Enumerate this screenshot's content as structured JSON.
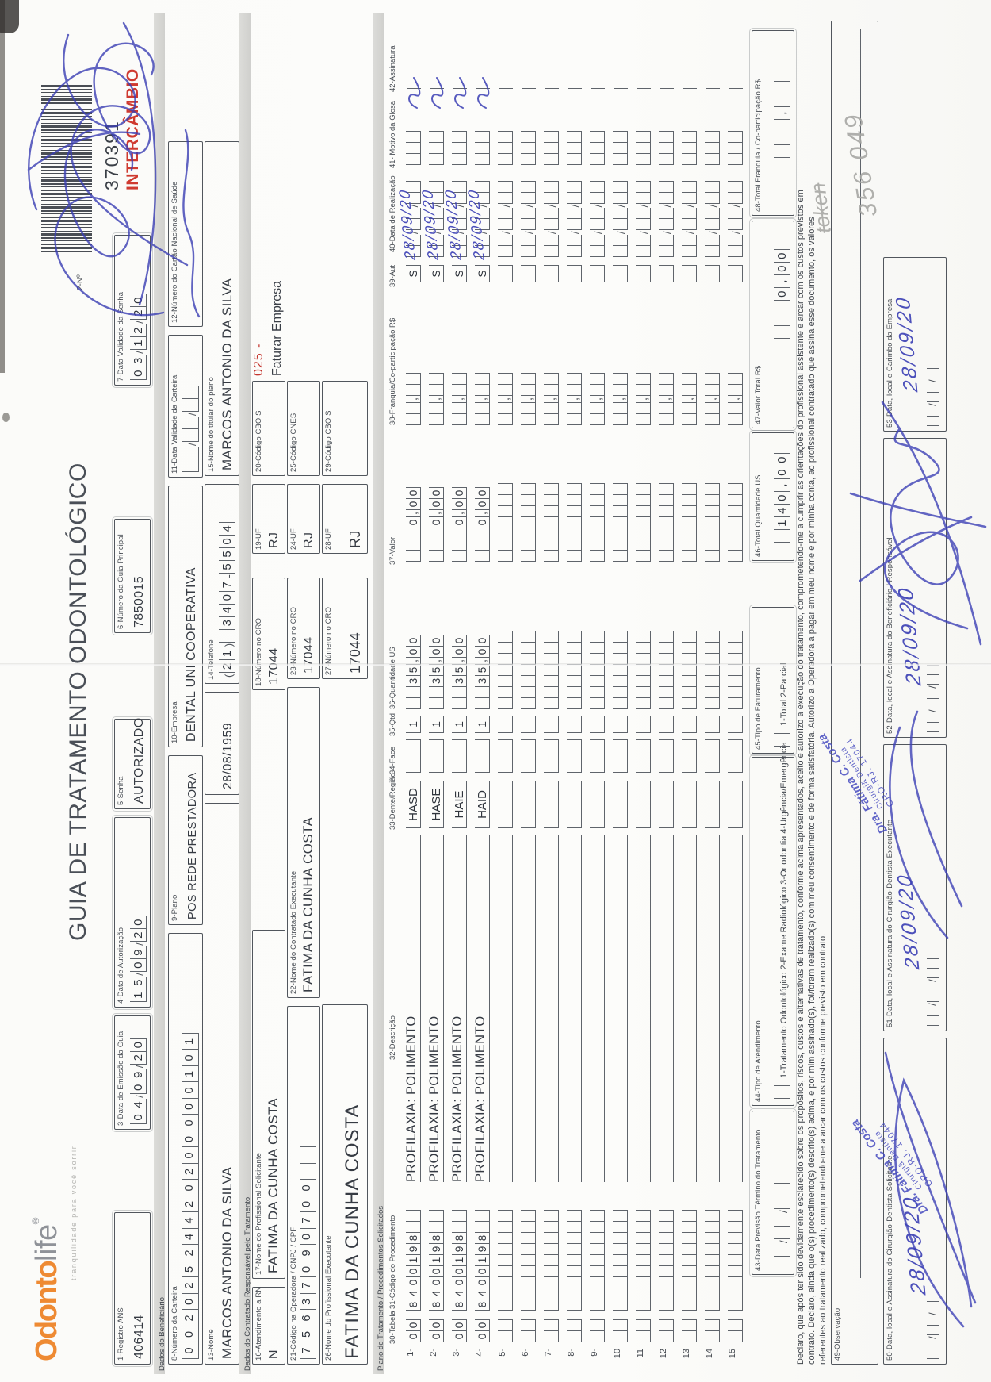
{
  "scan_marks": {
    "barcode_label": "2-Nº",
    "id_number": "370391",
    "id_tag": "INTERCÂMBIO",
    "pencil_note": "token",
    "pencil_number": "356 049",
    "ink_color": "#3e42b6",
    "red_color": "#cf3a30",
    "brand_orange_color": "#ee8a33"
  },
  "logo": {
    "brand_part1": "Odonto",
    "brand_part2": "life",
    "reg": "®",
    "tagline": "tranquilidade para você sorrir"
  },
  "title": "GUIA DE TRATAMENTO ODONTOLÓGICO",
  "header": {
    "f1": {
      "label": "1-Registro ANS",
      "value": "406414"
    },
    "f3": {
      "label": "3-Data de Emissão da Guia",
      "value": "04/09/20"
    },
    "f4": {
      "label": "4-Data de Autorização",
      "value": "15/09/20"
    },
    "f5": {
      "label": "5-Senha",
      "value": "AUTORIZADO"
    },
    "f6": {
      "label": "6-Número da Guia Principal",
      "value": "7850015"
    },
    "f7": {
      "label": "7-Data Validade da Senha",
      "value": "03/12/20"
    }
  },
  "beneficiario": {
    "section": "Dados do Beneficiário",
    "f8": {
      "label": "8-Número da Carteira",
      "value": "00202524420200000101"
    },
    "f9": {
      "label": "9-Plano",
      "value": "POS REDE PRESTADORA"
    },
    "f10": {
      "label": "10-Empresa",
      "value": "DENTAL UNI  COOPERATIVA"
    },
    "f11": {
      "label": "11-Data Validade da Carteira",
      "value": "  /  /  "
    },
    "f12": {
      "label": "12-Número do Cartão Nacional de Saúde",
      "value": ""
    },
    "f13": {
      "label": "13-Nome",
      "value": "MARCOS ANTONIO DA SILVA"
    },
    "birth_date": "28/08/1959",
    "f14": {
      "label": "14-Telefone",
      "value": "(21) 3407-5504"
    },
    "f15": {
      "label": "15-Nome do titular do plano",
      "value": "MARCOS ANTONIO DA SILVA"
    }
  },
  "contratado": {
    "section": "Dados do Contratado Responsável pelo Tratamento",
    "f16": {
      "label": "16-Atendimento a RN",
      "value": "N"
    },
    "f17": {
      "label": "17-Nome do Profissional Solicitante",
      "value": "FATIMA DA CUNHA COSTA"
    },
    "f18": {
      "label": "18-Número no CRO",
      "value": "17044"
    },
    "f19": {
      "label": "19-UF",
      "value": "RJ"
    },
    "f20": {
      "label": "20-Código CBO S",
      "value": ""
    },
    "note_number": "025 -",
    "note_text": "Faturar Empresa",
    "f21": {
      "label": "21-Código na Operadora / CNPJ / CPF",
      "value": "75637090700  "
    },
    "f22": {
      "label": "22-Nome do Contratado Executante",
      "value": "FATIMA DA CUNHA COSTA"
    },
    "f23": {
      "label": "23-Número no CRO",
      "value": "17044"
    },
    "f24": {
      "label": "24-UF",
      "value": "RJ"
    },
    "f25": {
      "label": "25-Código CNES",
      "value": ""
    },
    "f26": {
      "label": "26-Nome do Profissional Executante",
      "value": "FATIMA DA CUNHA COSTA"
    },
    "f27": {
      "label": "27-Número no CRO",
      "value": "17044"
    },
    "f28": {
      "label": "28-UF",
      "value": "RJ"
    },
    "f29": {
      "label": "29-Código CBO S",
      "value": ""
    }
  },
  "treatment_table": {
    "section": "Plano de Tratamento / Procedimentos Solicitados",
    "headers": [
      "30-Tabela",
      "31-Código do Procedimento",
      "32-Descrição",
      "33-Dente/Região",
      "34-Face",
      "35-Qtd",
      "36-Quantidade US",
      "37-Valor",
      "38-Franquia/Co-participação R$",
      "39-Aut",
      "40-Data de Realização",
      "41- Motivo da Glosa",
      "42-Assinatura"
    ],
    "rows": [
      {
        "n": "1-",
        "tabela": "00",
        "codigo": "8400198  ",
        "descricao": "PROFILAXIA: POLIMENTO",
        "dente": "HASD",
        "face": "",
        "qtd": "1",
        "qtd_us": "  35,00",
        "valor": "   0,00",
        "franquia": "  ,  ",
        "aut": "S",
        "data": "  /  /  ",
        "data_ink": "28/09/20",
        "motivo": "   "
      },
      {
        "n": "2-",
        "tabela": "00",
        "codigo": "8400198  ",
        "descricao": "PROFILAXIA: POLIMENTO",
        "dente": "HASE",
        "face": "",
        "qtd": "1",
        "qtd_us": "  35,00",
        "valor": "   0,00",
        "franquia": "  ,  ",
        "aut": "S",
        "data": "  /  /  ",
        "data_ink": "28/09/20",
        "motivo": "   "
      },
      {
        "n": "3-",
        "tabela": "00",
        "codigo": "8400198  ",
        "descricao": "PROFILAXIA: POLIMENTO",
        "dente": "HAIE",
        "face": "",
        "qtd": "1",
        "qtd_us": "  35,00",
        "valor": "   0,00",
        "franquia": "  ,  ",
        "aut": "S",
        "data": "  /  /  ",
        "data_ink": "28/09/20",
        "motivo": "   "
      },
      {
        "n": "4-",
        "tabela": "00",
        "codigo": "8400198  ",
        "descricao": "PROFILAXIA: POLIMENTO",
        "dente": "HAID",
        "face": "",
        "qtd": "1",
        "qtd_us": "  35,00",
        "valor": "   0,00",
        "franquia": "  ,  ",
        "aut": "S",
        "data": "  /  /  ",
        "data_ink": "28/09/20",
        "motivo": "   "
      },
      {
        "n": "5-"
      },
      {
        "n": "6-"
      },
      {
        "n": "7-"
      },
      {
        "n": "8-"
      },
      {
        "n": "9-"
      },
      {
        "n": "10"
      },
      {
        "n": "11"
      },
      {
        "n": "12"
      },
      {
        "n": "13"
      },
      {
        "n": "14"
      },
      {
        "n": "15"
      }
    ]
  },
  "footer": {
    "f43": {
      "label": "43-Data Previsão Término do Tratamento",
      "value": "  /  /  "
    },
    "f44": {
      "label": "44-Tipo de Atendimento",
      "checkbox": " ",
      "options": "1-Tratamento Odontológico  2-Exame Radiológico  3-Ortodontia  4-Urgência/Emergência"
    },
    "f45": {
      "label": "45-Tipo de Faturamento",
      "checkbox": " ",
      "options": "1-Total  2-Parcial"
    },
    "f46": {
      "label": "46-Total Quantidade US",
      "value": "  140,00"
    },
    "f47": {
      "label": "47-Valor Total R$",
      "value": "    0,00"
    },
    "f48": {
      "label": "48-Total Franquia / Co-participação R$",
      "value": "   ,  "
    },
    "declaration": [
      "Declaro, que após ter sido devidamente esclarecido sobre os propósitos, riscos, custos e alternativas de tratamento, conforme acima apresentados, aceito e autorizo a execução do tratamento, comprometendo-me a cumprir as orientações do profissional assistente e arcar com os custos previstos em",
      "contrato. Declaro, ainda que o(s) procedimento(s) descrito(s) acima, e por mim assinado(s), foi/foram realizado(s) com meu consentimento e de forma satisfatória. Autorizo a Operadora a pagar em meu nome e por minha conta, ao profissional contratado que assina esse documento, os valores",
      "referentes ao tratamento realizado, comprometendo-me a arcar com os custos conforme previsto em contrato."
    ],
    "f49": {
      "label": "49-Observação",
      "value": ""
    },
    "f50": {
      "label": "50-Data, local e Assinatura do Cirurgião-Dentista Solicitante",
      "date_slots": "  /  /  ",
      "ink_date": "28/09/20"
    },
    "f51": {
      "label": "51-Data, local e Assinatura do Cirurgião-Dentista Executante",
      "date_slots": "  /  /  ",
      "ink_date": "28/09/20"
    },
    "f52": {
      "label": "52-Data, local e Assinatura do Beneficiário / Responsável",
      "date_slots": "  /  /  ",
      "ink_date": "28/09/20"
    },
    "f53": {
      "label": "53-Data, local e Carimbo da Empresa",
      "date_slots": "  /  /  ",
      "ink_date": "28/09/20"
    },
    "stamp": {
      "line1": "Dra. Fátima C. Costa",
      "line2": "Cirurgiã  Dentista",
      "line3": "CRO-RJ. 17044"
    }
  }
}
